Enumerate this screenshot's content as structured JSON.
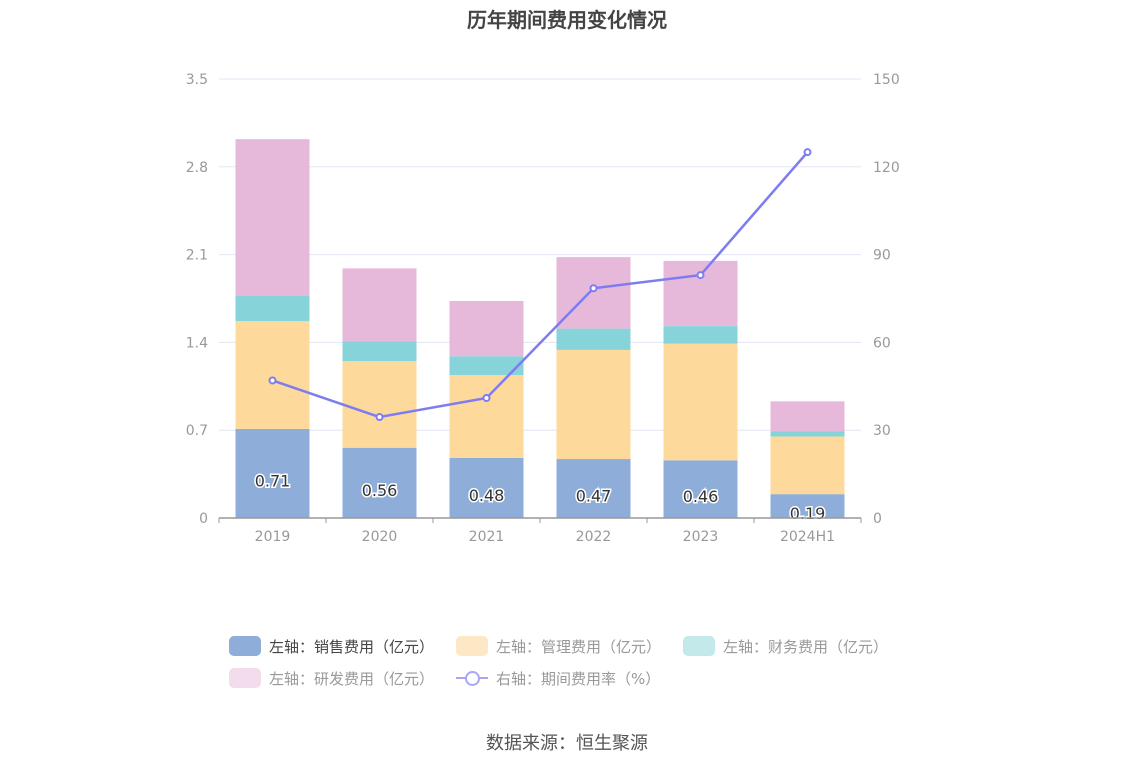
{
  "title": "历年期间费用变化情况",
  "source": "数据来源：恒生聚源",
  "chart_data": {
    "type": "bar",
    "stacked": true,
    "categories": [
      "2019",
      "2020",
      "2021",
      "2022",
      "2023",
      "2024H1"
    ],
    "left_axis": {
      "ylim": [
        0,
        3.5
      ],
      "ticks": [
        "0",
        "0.7",
        "1.4",
        "2.1",
        "2.8",
        "3.5"
      ]
    },
    "right_axis": {
      "ylim": [
        0,
        150
      ],
      "ticks": [
        "0",
        "30",
        "60",
        "90",
        "120",
        "150"
      ]
    },
    "grid": true,
    "legend_position": "bottom",
    "series": [
      {
        "name": "左轴：销售费用（亿元）",
        "axis": "left",
        "kind": "bar",
        "color": "#8eadd9",
        "values": [
          0.71,
          0.56,
          0.48,
          0.47,
          0.46,
          0.19
        ],
        "labels": [
          "0.71",
          "0.56",
          "0.48",
          "0.47",
          "0.46",
          "0.19"
        ]
      },
      {
        "name": "左轴：管理费用（亿元）",
        "axis": "left",
        "kind": "bar",
        "color": "#fdd99b",
        "values": [
          0.86,
          0.69,
          0.66,
          0.87,
          0.93,
          0.46
        ]
      },
      {
        "name": "左轴：财务费用（亿元）",
        "axis": "left",
        "kind": "bar",
        "color": "#86d4d9",
        "values": [
          0.2,
          0.16,
          0.15,
          0.17,
          0.14,
          0.04
        ]
      },
      {
        "name": "左轴：研发费用（亿元）",
        "axis": "left",
        "kind": "bar",
        "color": "#e6b8da",
        "values": [
          1.25,
          0.58,
          0.44,
          0.57,
          0.52,
          0.24
        ]
      },
      {
        "name": "右轴：期间费用率（%）",
        "axis": "right",
        "kind": "line",
        "color": "#7e7cf0",
        "values": [
          47.0,
          34.5,
          41.0,
          78.5,
          83.0,
          125.0
        ]
      }
    ]
  }
}
